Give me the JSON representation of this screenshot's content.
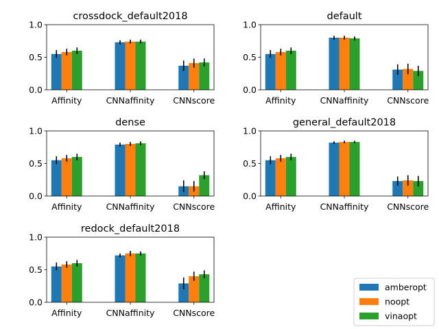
{
  "chart_data": {
    "type": "bar",
    "legend": {
      "placement": "bottom-right",
      "entries": [
        {
          "name": "amberopt",
          "color": "#1f77b4"
        },
        {
          "name": "noopt",
          "color": "#ff7f0e"
        },
        {
          "name": "vinaopt",
          "color": "#2ca02c"
        }
      ]
    },
    "panels": [
      {
        "title": "crossdock_default2018",
        "categories": [
          "Affinity",
          "CNNaffinity",
          "CNNscore"
        ],
        "ylim": [
          0,
          1.0
        ],
        "yticks": [
          "0.0",
          "0.5",
          "1.0"
        ],
        "series": [
          {
            "name": "amberopt",
            "values": [
              0.55,
              0.73,
              0.37
            ],
            "errors": [
              0.06,
              0.03,
              0.08
            ]
          },
          {
            "name": "noopt",
            "values": [
              0.58,
              0.74,
              0.41
            ],
            "errors": [
              0.05,
              0.03,
              0.07
            ]
          },
          {
            "name": "vinaopt",
            "values": [
              0.6,
              0.74,
              0.42
            ],
            "errors": [
              0.05,
              0.03,
              0.06
            ]
          }
        ]
      },
      {
        "title": "default",
        "categories": [
          "Affinity",
          "CNNaffinity",
          "CNNscore"
        ],
        "ylim": [
          0,
          1.0
        ],
        "yticks": [
          "0.0",
          "0.5",
          "1.0"
        ],
        "series": [
          {
            "name": "amberopt",
            "values": [
              0.55,
              0.8,
              0.31
            ],
            "errors": [
              0.06,
              0.03,
              0.08
            ]
          },
          {
            "name": "noopt",
            "values": [
              0.58,
              0.8,
              0.32
            ],
            "errors": [
              0.05,
              0.03,
              0.08
            ]
          },
          {
            "name": "vinaopt",
            "values": [
              0.6,
              0.79,
              0.29
            ],
            "errors": [
              0.05,
              0.03,
              0.08
            ]
          }
        ]
      },
      {
        "title": "dense",
        "categories": [
          "Affinity",
          "CNNaffinity",
          "CNNscore"
        ],
        "ylim": [
          0,
          1.0
        ],
        "yticks": [
          "0.0",
          "0.5",
          "1.0"
        ],
        "series": [
          {
            "name": "amberopt",
            "values": [
              0.55,
              0.79,
              0.15
            ],
            "errors": [
              0.06,
              0.03,
              0.09
            ]
          },
          {
            "name": "noopt",
            "values": [
              0.58,
              0.8,
              0.15
            ],
            "errors": [
              0.05,
              0.03,
              0.08
            ]
          },
          {
            "name": "vinaopt",
            "values": [
              0.6,
              0.81,
              0.32
            ],
            "errors": [
              0.05,
              0.03,
              0.06
            ]
          }
        ]
      },
      {
        "title": "general_default2018",
        "categories": [
          "Affinity",
          "CNNaffinity",
          "CNNscore"
        ],
        "ylim": [
          0,
          1.0
        ],
        "yticks": [
          "0.0",
          "0.5",
          "1.0"
        ],
        "series": [
          {
            "name": "amberopt",
            "values": [
              0.55,
              0.82,
              0.23
            ],
            "errors": [
              0.06,
              0.02,
              0.07
            ]
          },
          {
            "name": "noopt",
            "values": [
              0.58,
              0.83,
              0.24
            ],
            "errors": [
              0.05,
              0.02,
              0.08
            ]
          },
          {
            "name": "vinaopt",
            "values": [
              0.6,
              0.83,
              0.23
            ],
            "errors": [
              0.05,
              0.02,
              0.08
            ]
          }
        ]
      },
      {
        "title": "redock_default2018",
        "categories": [
          "Affinity",
          "CNNaffinity",
          "CNNscore"
        ],
        "ylim": [
          0,
          1.0
        ],
        "yticks": [
          "0.0",
          "0.5",
          "1.0"
        ],
        "series": [
          {
            "name": "amberopt",
            "values": [
              0.55,
              0.72,
              0.29
            ],
            "errors": [
              0.06,
              0.03,
              0.09
            ]
          },
          {
            "name": "noopt",
            "values": [
              0.58,
              0.75,
              0.4
            ],
            "errors": [
              0.05,
              0.04,
              0.07
            ]
          },
          {
            "name": "vinaopt",
            "values": [
              0.6,
              0.75,
              0.43
            ],
            "errors": [
              0.05,
              0.03,
              0.06
            ]
          }
        ]
      }
    ]
  }
}
